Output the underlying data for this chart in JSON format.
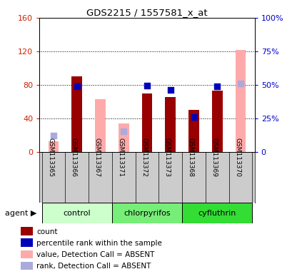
{
  "title": "GDS2215 / 1557581_x_at",
  "samples": [
    "GSM113365",
    "GSM113366",
    "GSM113367",
    "GSM113371",
    "GSM113372",
    "GSM113373",
    "GSM113368",
    "GSM113369",
    "GSM113370"
  ],
  "red_bars": [
    null,
    90,
    null,
    null,
    70,
    66,
    50,
    73,
    null
  ],
  "pink_bars": [
    13,
    null,
    63,
    34,
    null,
    null,
    null,
    null,
    122
  ],
  "blue_squares_left": [
    null,
    78,
    null,
    null,
    79,
    74,
    42,
    78,
    null
  ],
  "lavender_squares_left": [
    20,
    null,
    null,
    25,
    null,
    null,
    null,
    null,
    82
  ],
  "left_axis_color": "#cc2200",
  "right_axis_color": "#0000cc",
  "red_bar_color": "#990000",
  "pink_bar_color": "#ffaaaa",
  "blue_sq_color": "#0000bb",
  "lavender_sq_color": "#aaaadd",
  "bar_width": 0.45,
  "background_color": "#cccccc",
  "group_info": [
    {
      "start": 0,
      "end": 2,
      "color": "#ccffcc",
      "name": "control"
    },
    {
      "start": 3,
      "end": 5,
      "color": "#77ee77",
      "name": "chlorpyrifos"
    },
    {
      "start": 6,
      "end": 8,
      "color": "#33dd33",
      "name": "cyfluthrin"
    }
  ],
  "legend_items": [
    {
      "color": "#990000",
      "label": "count"
    },
    {
      "color": "#0000bb",
      "label": "percentile rank within the sample"
    },
    {
      "color": "#ffaaaa",
      "label": "value, Detection Call = ABSENT"
    },
    {
      "color": "#aaaadd",
      "label": "rank, Detection Call = ABSENT"
    }
  ],
  "yticks_right_labels": [
    "0",
    "25%",
    "50%",
    "75%",
    "100%"
  ]
}
